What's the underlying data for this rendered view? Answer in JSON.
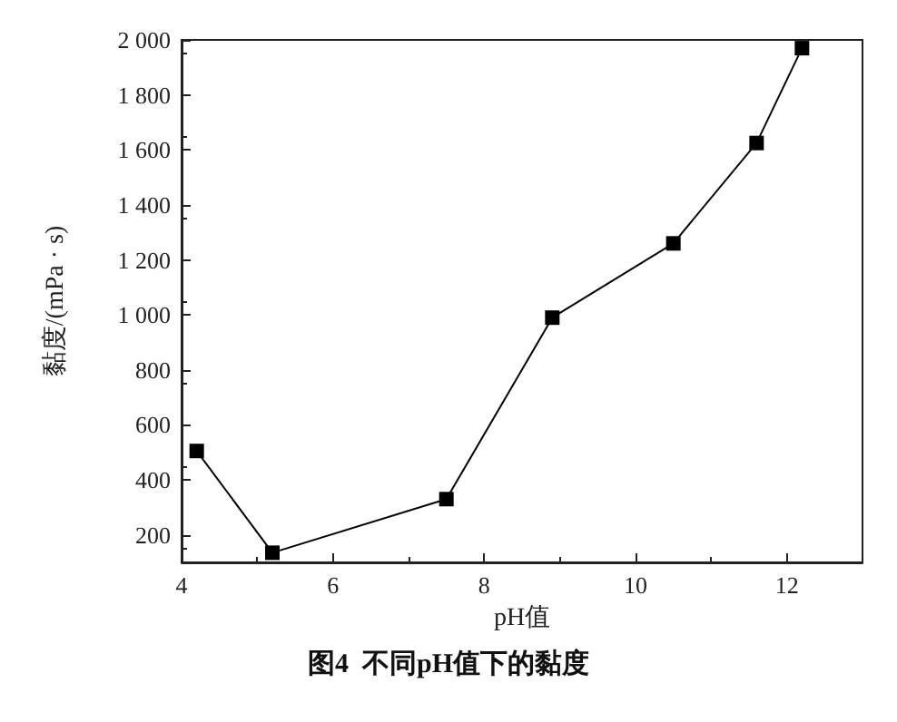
{
  "chart_data": {
    "type": "line",
    "xlabel": "pH值",
    "ylabel": "黏度/(mPa · s)",
    "annotations": [
      "图4  不同pH值下的黏度"
    ],
    "x": [
      4.2,
      5.2,
      7.5,
      8.9,
      10.5,
      11.6,
      12.2
    ],
    "series": [
      {
        "color": "#000000",
        "values": [
          505,
          135,
          330,
          990,
          1260,
          1625,
          1970
        ]
      }
    ],
    "xlim": [
      4,
      13
    ],
    "xticks": [
      4,
      6,
      8,
      10,
      12
    ],
    "ylim": [
      100,
      2000
    ],
    "yticks": [
      200,
      400,
      600,
      800,
      {
        "value": 1000,
        "label": "1 000"
      },
      {
        "value": 1200,
        "label": "1 200"
      },
      {
        "value": 1400,
        "label": "1 400"
      },
      {
        "value": 1600,
        "label": "1 600"
      },
      {
        "value": 1800,
        "label": "1 800"
      },
      {
        "value": 2000,
        "label": "2 000"
      }
    ],
    "grid": false,
    "marker": "square",
    "line_style": "solid"
  }
}
